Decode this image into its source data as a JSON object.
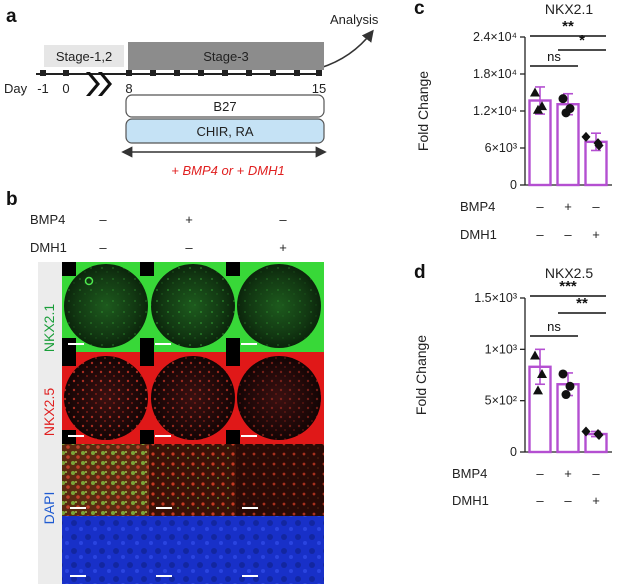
{
  "panel_a": {
    "letter": "a",
    "analysis": "Analysis",
    "stage12": "Stage-1,2",
    "stage3": "Stage-3",
    "day_label": "Day",
    "days": [
      "-1",
      "0",
      "8",
      "15"
    ],
    "media1": "B27",
    "media2": "CHIR, RA",
    "treatment": "+ BMP4 or + DMH1",
    "colors": {
      "stage_light": "#e6e6e6",
      "stage_dark": "#8c8c8c",
      "media2_fill": "#c5e2f5",
      "treatment_text": "#e02020"
    }
  },
  "panel_b": {
    "letter": "b",
    "row_labels": [
      "BMP4",
      "DMH1"
    ],
    "conditions": [
      {
        "bmp4": "–",
        "dmh1": "–"
      },
      {
        "bmp4": "+",
        "dmh1": "–"
      },
      {
        "bmp4": "–",
        "dmh1": "+"
      }
    ],
    "channels": [
      {
        "name": "NKX2.1",
        "color": "#1a9e3a"
      },
      {
        "name": "NKX2.5",
        "color": "#e02020"
      },
      {
        "name": "DAPI",
        "color": "#1f5bd1"
      }
    ]
  },
  "panel_c": {
    "letter": "c",
    "chart_data": {
      "type": "bar",
      "title": "NKX2.1",
      "ylabel": "Fold Change",
      "ylim": [
        0,
        24000
      ],
      "yticks": [
        0,
        6000,
        12000,
        18000,
        24000
      ],
      "ytick_labels": [
        "0",
        "6×10³",
        "1.2×10⁴",
        "1.8×10⁴",
        "2.4×10⁴"
      ],
      "conditions": [
        {
          "bmp4": "–",
          "dmh1": "–"
        },
        {
          "bmp4": "+",
          "dmh1": "–"
        },
        {
          "bmp4": "–",
          "dmh1": "+"
        }
      ],
      "values": [
        13700,
        13100,
        7000
      ],
      "errors": [
        2200,
        1700,
        1400
      ],
      "points": [
        [
          15000,
          12800,
          12200
        ],
        [
          14000,
          12400,
          11700
        ],
        [
          7800,
          6800,
          6400
        ]
      ],
      "markers": [
        "triangle",
        "circle",
        "diamond"
      ],
      "comparisons": [
        {
          "from": 0,
          "to": 1,
          "label": "ns"
        },
        {
          "from": 1,
          "to": 2,
          "label": "*"
        },
        {
          "from": 0,
          "to": 2,
          "label": "**"
        }
      ],
      "bar_color": "#b44fd1"
    }
  },
  "panel_d": {
    "letter": "d",
    "chart_data": {
      "type": "bar",
      "title": "NKX2.5",
      "ylabel": "Fold Change",
      "ylim": [
        0,
        1500
      ],
      "yticks": [
        0,
        500,
        1000,
        1500
      ],
      "ytick_labels": [
        "0",
        "5×10²",
        "1×10³",
        "1.5×10³"
      ],
      "conditions": [
        {
          "bmp4": "–",
          "dmh1": "–"
        },
        {
          "bmp4": "+",
          "dmh1": "–"
        },
        {
          "bmp4": "–",
          "dmh1": "+"
        }
      ],
      "values": [
        830,
        660,
        175
      ],
      "errors": [
        170,
        110,
        25
      ],
      "points": [
        [
          940,
          760,
          600
        ],
        [
          760,
          640,
          560
        ],
        [
          200,
          175,
          165
        ]
      ],
      "markers": [
        "triangle",
        "circle",
        "diamond"
      ],
      "comparisons": [
        {
          "from": 0,
          "to": 1,
          "label": "ns"
        },
        {
          "from": 1,
          "to": 2,
          "label": "**"
        },
        {
          "from": 0,
          "to": 2,
          "label": "***"
        }
      ],
      "bar_color": "#b44fd1"
    }
  },
  "row_labels": [
    "BMP4",
    "DMH1"
  ]
}
